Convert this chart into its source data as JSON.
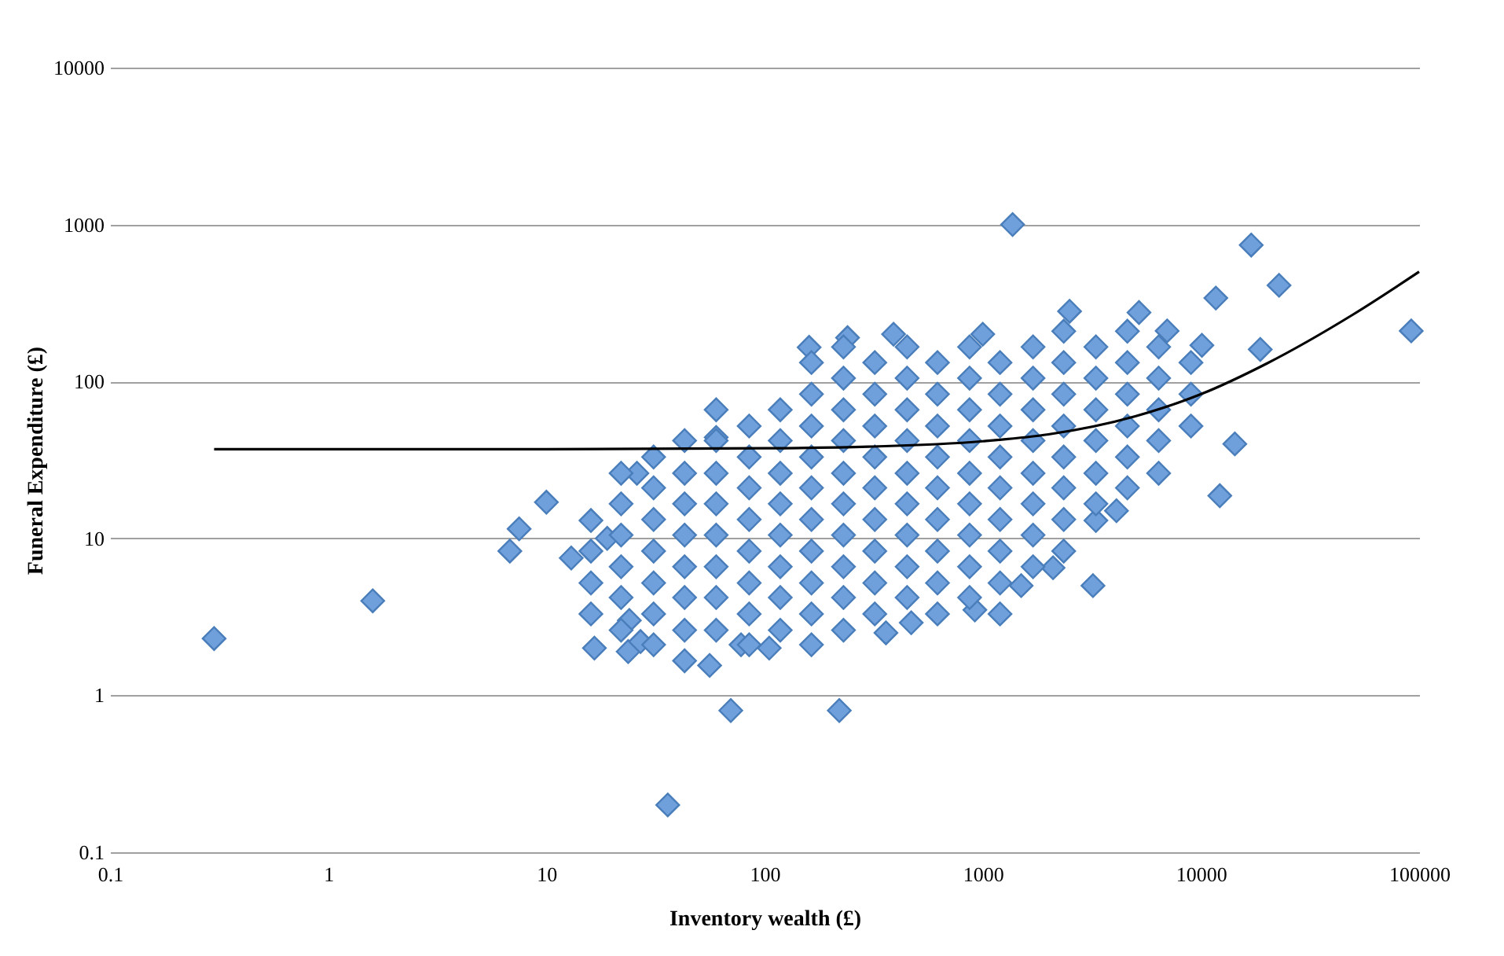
{
  "chart_data": {
    "type": "scatter",
    "xlabel": "Inventory wealth (£)",
    "ylabel": "Funeral Expenditure (£)",
    "log": "xy",
    "grid": "y",
    "xlim": [
      0.1,
      100000
    ],
    "xticks": [
      0.1,
      1,
      10,
      100,
      1000,
      10000,
      100000
    ],
    "ylim": [
      0.1,
      10000
    ],
    "yticks": [
      0.1,
      1,
      10,
      100,
      1000,
      10000
    ],
    "series": [
      {
        "marker": "diamond",
        "color": "#6fa0dc",
        "x": [
          0.3,
          1.6,
          6.8,
          7.5,
          10,
          13,
          26,
          16.6,
          19,
          24,
          23.7,
          27,
          36,
          56,
          70,
          220,
          60,
          1370,
          17000,
          22800,
          11700,
          92000,
          18700,
          10100,
          14300,
          12200,
          3200,
          4100,
          160,
          240,
          390,
          1000,
          2500,
          5200,
          7000,
          78,
          105,
          360,
          470,
          920,
          1200,
          1500,
          2100,
          3300,
          16,
          16,
          16,
          16,
          22,
          22,
          22,
          22,
          22,
          22,
          31,
          31,
          31,
          31,
          31,
          31,
          31,
          43,
          43,
          43,
          43,
          43,
          43,
          43,
          43,
          60,
          60,
          60,
          60,
          60,
          60,
          60,
          60,
          85,
          85,
          85,
          85,
          85,
          85,
          85,
          85,
          118,
          118,
          118,
          118,
          118,
          118,
          118,
          118,
          164,
          164,
          164,
          164,
          164,
          164,
          164,
          164,
          164,
          164,
          230,
          230,
          230,
          230,
          230,
          230,
          230,
          230,
          230,
          230,
          320,
          320,
          320,
          320,
          320,
          320,
          320,
          320,
          320,
          450,
          450,
          450,
          450,
          450,
          450,
          450,
          450,
          450,
          620,
          620,
          620,
          620,
          620,
          620,
          620,
          620,
          620,
          870,
          870,
          870,
          870,
          870,
          870,
          870,
          870,
          870,
          1200,
          1200,
          1200,
          1200,
          1200,
          1200,
          1200,
          1200,
          1700,
          1700,
          1700,
          1700,
          1700,
          1700,
          1700,
          1700,
          2350,
          2350,
          2350,
          2350,
          2350,
          2350,
          2350,
          2350,
          3300,
          3300,
          3300,
          3300,
          3300,
          3300,
          4600,
          4600,
          4600,
          4600,
          4600,
          4600,
          6400,
          6400,
          6400,
          6400,
          6400,
          9000,
          9000,
          9000
        ],
        "values": [
          2.3,
          4,
          8.3,
          11.5,
          17,
          7.5,
          26,
          2,
          10,
          3,
          1.9,
          2.2,
          0.2,
          1.55,
          0.8,
          0.8,
          44,
          1000,
          740,
          410,
          340,
          210,
          160,
          170,
          40,
          18.7,
          5,
          15,
          165,
          190,
          200,
          200,
          280,
          275,
          210,
          2.1,
          2,
          2.5,
          2.9,
          3.5,
          3.3,
          5,
          6.5,
          13,
          13,
          8.3,
          5.2,
          3.3,
          26,
          16.6,
          10.5,
          6.6,
          4.2,
          2.6,
          33,
          21,
          13.2,
          8.3,
          5.2,
          3.3,
          2.1,
          42,
          26,
          16.6,
          10.5,
          6.6,
          4.2,
          2.6,
          1.66,
          66,
          42,
          26,
          16.6,
          10.5,
          6.6,
          4.2,
          2.6,
          52,
          33,
          21,
          13.2,
          8.3,
          5.2,
          3.3,
          2.1,
          66,
          42,
          26,
          16.6,
          10.5,
          6.6,
          4.2,
          2.6,
          132,
          83,
          52,
          33,
          21,
          13.2,
          8.3,
          5.2,
          3.3,
          2.1,
          166,
          105,
          66,
          42,
          26,
          16.6,
          10.5,
          6.6,
          4.2,
          2.6,
          132,
          83,
          52,
          33,
          21,
          13.2,
          8.3,
          5.2,
          3.3,
          166,
          105,
          66,
          42,
          26,
          16.6,
          10.5,
          6.6,
          4.2,
          132,
          83,
          52,
          33,
          21,
          13.2,
          8.3,
          5.2,
          3.3,
          166,
          105,
          66,
          42,
          26,
          16.6,
          10.5,
          6.6,
          4.2,
          132,
          83,
          52,
          33,
          21,
          13.2,
          8.3,
          5.2,
          166,
          105,
          66,
          42,
          26,
          16.6,
          10.5,
          6.6,
          209,
          132,
          83,
          52,
          33,
          21,
          13.2,
          8.3,
          166,
          105,
          66,
          42,
          26,
          16.6,
          209,
          132,
          83,
          52,
          33,
          21,
          166,
          105,
          66,
          42,
          26,
          132,
          83,
          52
        ]
      },
      {
        "type": "line",
        "color": "#000000",
        "line_style": "solid",
        "x": [
          0.3,
          1,
          10,
          100,
          300,
          1000,
          2000,
          5000,
          10000,
          20000,
          50000,
          100000
        ],
        "values": [
          37,
          37,
          37,
          37.5,
          38.4,
          41.6,
          46,
          60,
          83,
          130,
          268,
          500
        ]
      }
    ]
  }
}
